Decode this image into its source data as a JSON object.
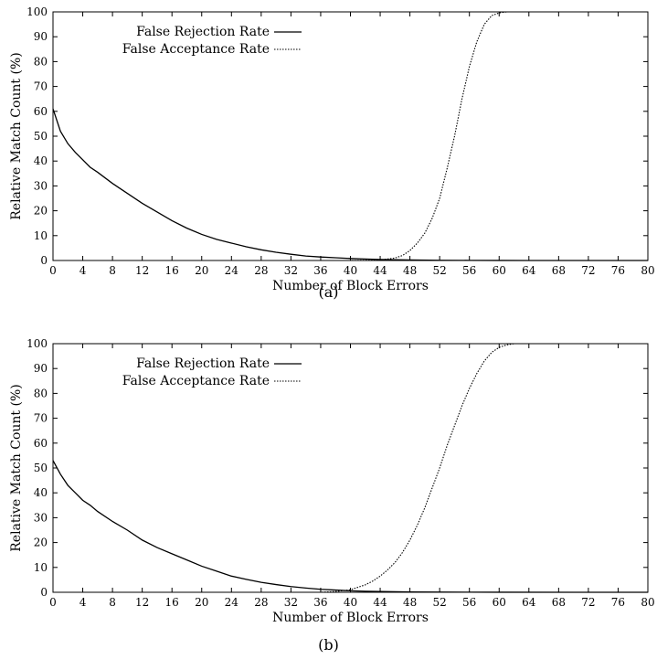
{
  "chart_data": [
    {
      "type": "line",
      "caption": "(a)",
      "xlabel": "Number of Block Errors",
      "ylabel": "Relative Match Count (%)",
      "xlim": [
        0,
        80
      ],
      "ylim": [
        0,
        100
      ],
      "xticks": [
        0,
        4,
        8,
        12,
        16,
        20,
        24,
        28,
        32,
        36,
        40,
        44,
        48,
        52,
        56,
        60,
        64,
        68,
        72,
        76,
        80
      ],
      "yticks": [
        0,
        10,
        20,
        30,
        40,
        50,
        60,
        70,
        80,
        90,
        100
      ],
      "grid": false,
      "legend": "top-left",
      "series": [
        {
          "name": "False Rejection Rate",
          "style": "solid",
          "x": [
            0,
            1,
            2,
            3,
            4,
            5,
            6,
            8,
            10,
            12,
            14,
            16,
            18,
            20,
            22,
            24,
            26,
            28,
            30,
            32,
            34,
            36,
            38,
            40,
            42,
            44,
            46,
            48,
            52,
            56,
            60,
            64,
            70,
            80
          ],
          "y": [
            61,
            52,
            47,
            43.5,
            40.5,
            37.5,
            35.5,
            31,
            27,
            23,
            19.5,
            16,
            13,
            10.5,
            8.5,
            7,
            5.5,
            4.3,
            3.3,
            2.5,
            1.8,
            1.4,
            1.1,
            0.8,
            0.6,
            0.4,
            0.3,
            0.2,
            0.1,
            0.05,
            0.02,
            0,
            0,
            0
          ]
        },
        {
          "name": "False Acceptance Rate",
          "style": "dotted",
          "x": [
            0,
            40,
            44,
            46,
            47,
            48,
            49,
            50,
            51,
            52,
            53,
            54,
            55,
            56,
            57,
            58,
            59,
            60,
            61,
            62,
            64,
            70,
            80
          ],
          "y": [
            0,
            0,
            0.2,
            1,
            2,
            4,
            7,
            11,
            17,
            25,
            37,
            50,
            65,
            78,
            88,
            95,
            98.5,
            99.6,
            100,
            100,
            100,
            100,
            100
          ]
        }
      ]
    },
    {
      "type": "line",
      "caption": "(b)",
      "xlabel": "Number of Block Errors",
      "ylabel": "Relative Match Count (%)",
      "xlim": [
        0,
        80
      ],
      "ylim": [
        0,
        100
      ],
      "xticks": [
        0,
        4,
        8,
        12,
        16,
        20,
        24,
        28,
        32,
        36,
        40,
        44,
        48,
        52,
        56,
        60,
        64,
        68,
        72,
        76,
        80
      ],
      "yticks": [
        0,
        10,
        20,
        30,
        40,
        50,
        60,
        70,
        80,
        90,
        100
      ],
      "grid": false,
      "legend": "top-left",
      "series": [
        {
          "name": "False Rejection Rate",
          "style": "solid",
          "x": [
            0,
            1,
            2,
            3,
            4,
            5,
            6,
            8,
            10,
            12,
            14,
            16,
            18,
            20,
            22,
            24,
            26,
            28,
            30,
            32,
            34,
            36,
            38,
            40,
            42,
            44,
            48,
            52,
            56,
            60,
            70,
            80
          ],
          "y": [
            53,
            47.5,
            43,
            40,
            37,
            35,
            32.5,
            28.5,
            25,
            21,
            18,
            15.5,
            13,
            10.5,
            8.5,
            6.5,
            5.2,
            4,
            3.1,
            2.3,
            1.7,
            1.2,
            0.9,
            0.6,
            0.4,
            0.3,
            0.15,
            0.08,
            0.04,
            0.02,
            0,
            0
          ]
        },
        {
          "name": "False Acceptance Rate",
          "style": "dotted",
          "x": [
            0,
            36,
            38,
            40,
            41,
            42,
            43,
            44,
            45,
            46,
            47,
            48,
            49,
            50,
            51,
            52,
            53,
            54,
            55,
            56,
            57,
            58,
            59,
            60,
            61,
            62,
            63,
            64,
            70,
            80
          ],
          "y": [
            0,
            0,
            0.3,
            1,
            2,
            3,
            4.5,
            6.5,
            9,
            12,
            16,
            21,
            27,
            34,
            42,
            50,
            59,
            67,
            75,
            82,
            88,
            93,
            96.5,
            98.5,
            99.5,
            100,
            100,
            100,
            100,
            100
          ]
        }
      ]
    }
  ]
}
